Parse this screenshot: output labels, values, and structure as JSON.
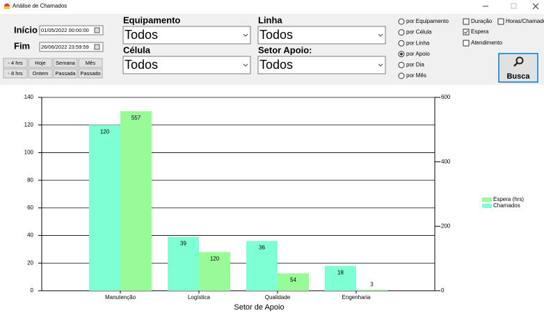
{
  "window": {
    "title": "Análise de Chamados"
  },
  "filters": {
    "start": {
      "label": "Início",
      "value": "01/05/2022 00:00:00"
    },
    "end": {
      "label": "Fim",
      "value": "26/06/2022 23:59:59"
    },
    "buttons": [
      "- 4 hrs",
      "Hoje",
      "Semana",
      "Mês",
      "- 8 hrs",
      "Ontem",
      "Passada",
      "Passado"
    ],
    "dropdowns": [
      {
        "label": "Equipamento",
        "value": "Todos"
      },
      {
        "label": "Linha",
        "value": "Todos"
      },
      {
        "label": "Célula",
        "value": "Todos"
      },
      {
        "label": "Setor Apoio:",
        "value": "Todos"
      }
    ],
    "radios": [
      {
        "label": "por Equipamento",
        "checked": false
      },
      {
        "label": "por Célula",
        "checked": false
      },
      {
        "label": "por Linha",
        "checked": false
      },
      {
        "label": "por Apoio",
        "checked": true
      },
      {
        "label": "por Dia",
        "checked": false
      },
      {
        "label": "por Mês",
        "checked": false
      }
    ],
    "checkboxes": [
      {
        "label": "Duração",
        "checked": false
      },
      {
        "label": "Espera",
        "checked": true
      },
      {
        "label": "Atendimento",
        "checked": false
      },
      {
        "label": "Horas/Chamado",
        "checked": false
      }
    ],
    "search": "Busca"
  },
  "chart_data": {
    "type": "bar",
    "x_label": "Setor de Apoio",
    "categories": [
      "Manutenção",
      "Logística",
      "Qualidade",
      "Engenharia"
    ],
    "series": [
      {
        "name": "Chamados",
        "color": "#7fffd4",
        "values": [
          120,
          39,
          36,
          18
        ]
      },
      {
        "name": "Espera (hrs)",
        "color": "#98fb98",
        "values": [
          557,
          120,
          54,
          3
        ],
        "axis": "y2"
      }
    ],
    "ylim": [
      0,
      140
    ],
    "yticks": [
      0,
      20,
      40,
      60,
      80,
      100,
      120,
      140
    ],
    "y2lim": [
      0,
      600
    ],
    "y2ticks": [
      0,
      200,
      400,
      600
    ],
    "grid": true,
    "legend_position": "right"
  }
}
